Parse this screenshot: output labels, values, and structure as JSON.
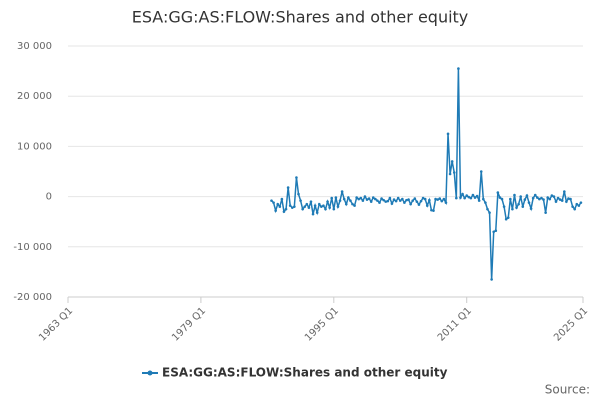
{
  "chart_data": {
    "type": "line",
    "title": "ESA:GG:AS:FLOW:Shares and other equity",
    "x": [
      "1987 Q3",
      "1987 Q4",
      "1988 Q1",
      "1988 Q2",
      "1988 Q3",
      "1988 Q4",
      "1989 Q1",
      "1989 Q2",
      "1989 Q3",
      "1989 Q4",
      "1990 Q1",
      "1990 Q2",
      "1990 Q3",
      "1990 Q4",
      "1991 Q1",
      "1991 Q2",
      "1991 Q3",
      "1991 Q4",
      "1992 Q1",
      "1992 Q2",
      "1992 Q3",
      "1992 Q4",
      "1993 Q1",
      "1993 Q2",
      "1993 Q3",
      "1993 Q4",
      "1994 Q1",
      "1994 Q2",
      "1994 Q3",
      "1994 Q4",
      "1995 Q1",
      "1995 Q2",
      "1995 Q3",
      "1995 Q4",
      "1996 Q1",
      "1996 Q2",
      "1996 Q3",
      "1996 Q4",
      "1997 Q1",
      "1997 Q2",
      "1997 Q3",
      "1997 Q4",
      "1998 Q1",
      "1998 Q2",
      "1998 Q3",
      "1998 Q4",
      "1999 Q1",
      "1999 Q2",
      "1999 Q3",
      "1999 Q4",
      "2000 Q1",
      "2000 Q2",
      "2000 Q3",
      "2000 Q4",
      "2001 Q1",
      "2001 Q2",
      "2001 Q3",
      "2001 Q4",
      "2002 Q1",
      "2002 Q2",
      "2002 Q3",
      "2002 Q4",
      "2003 Q1",
      "2003 Q2",
      "2003 Q3",
      "2003 Q4",
      "2004 Q1",
      "2004 Q2",
      "2004 Q3",
      "2004 Q4",
      "2005 Q1",
      "2005 Q2",
      "2005 Q3",
      "2005 Q4",
      "2006 Q1",
      "2006 Q2",
      "2006 Q3",
      "2006 Q4",
      "2007 Q1",
      "2007 Q2",
      "2007 Q3",
      "2007 Q4",
      "2008 Q1",
      "2008 Q2",
      "2008 Q3",
      "2008 Q4",
      "2009 Q1",
      "2009 Q2",
      "2009 Q3",
      "2009 Q4",
      "2010 Q1",
      "2010 Q2",
      "2010 Q3",
      "2010 Q4",
      "2011 Q1",
      "2011 Q2",
      "2011 Q3",
      "2011 Q4",
      "2012 Q1",
      "2012 Q2",
      "2012 Q3",
      "2012 Q4",
      "2013 Q1",
      "2013 Q2",
      "2013 Q3",
      "2013 Q4",
      "2014 Q1",
      "2014 Q2",
      "2014 Q3",
      "2014 Q4",
      "2015 Q1",
      "2015 Q2",
      "2015 Q3",
      "2015 Q4",
      "2016 Q1",
      "2016 Q2",
      "2016 Q3",
      "2016 Q4",
      "2017 Q1",
      "2017 Q2",
      "2017 Q3",
      "2017 Q4",
      "2018 Q1",
      "2018 Q2",
      "2018 Q3",
      "2018 Q4",
      "2019 Q1",
      "2019 Q2",
      "2019 Q3",
      "2019 Q4",
      "2020 Q1",
      "2020 Q2",
      "2020 Q3",
      "2020 Q4",
      "2021 Q1",
      "2021 Q2",
      "2021 Q3",
      "2021 Q4",
      "2022 Q1",
      "2022 Q2",
      "2022 Q3",
      "2022 Q4",
      "2023 Q1",
      "2023 Q2",
      "2023 Q3",
      "2023 Q4",
      "2024 Q1",
      "2024 Q2",
      "2024 Q3",
      "2024 Q4"
    ],
    "series": [
      {
        "name": "ESA:GG:AS:FLOW:Shares and other equity",
        "color": "#1f7bb6",
        "values": [
          -800,
          -1200,
          -2800,
          -1500,
          -2000,
          -500,
          -3000,
          -2500,
          1800,
          -1800,
          -2200,
          -2000,
          3800,
          500,
          -800,
          -2500,
          -2000,
          -1500,
          -2200,
          -1000,
          -3500,
          -1800,
          -3200,
          -1500,
          -2000,
          -1800,
          -2500,
          -1000,
          -2200,
          -300,
          -2500,
          -200,
          -2000,
          -800,
          1000,
          -500,
          -1500,
          -200,
          -800,
          -1500,
          -1800,
          -200,
          -500,
          -300,
          -800,
          0,
          -600,
          -400,
          -1000,
          -200,
          -500,
          -800,
          -1200,
          -400,
          -700,
          -1000,
          -900,
          -300,
          -1400,
          -600,
          -900,
          -300,
          -800,
          -500,
          -1200,
          -700,
          -600,
          -1500,
          -800,
          -400,
          -1000,
          -1600,
          -900,
          -300,
          -500,
          -1800,
          -700,
          -2700,
          -2800,
          -500,
          -600,
          -400,
          -900,
          -500,
          -1200,
          12500,
          4500,
          7000,
          4800,
          -300,
          25500,
          -200,
          500,
          -300,
          200,
          -100,
          -300,
          300,
          -200,
          100,
          -800,
          5000,
          -500,
          -1200,
          -2500,
          -3200,
          -16500,
          -7000,
          -6800,
          800,
          -200,
          -500,
          -2000,
          -4500,
          -4200,
          -500,
          -2500,
          300,
          -2200,
          -1500,
          0,
          -2000,
          -600,
          200,
          -1200,
          -2400,
          -300,
          300,
          -200,
          -500,
          -300,
          -600,
          -3200,
          -200,
          -500,
          200,
          0,
          -1000,
          -300,
          -600,
          -800,
          1000,
          -1000,
          -400,
          -500,
          -2000,
          -2500,
          -1500,
          -1800,
          -1200
        ]
      }
    ],
    "xlim": [
      "1963 Q1",
      "2025 Q1"
    ],
    "xticks": [
      "1963 Q1",
      "1979 Q1",
      "1995 Q1",
      "2011 Q1",
      "2025 Q1"
    ],
    "ylim": [
      -20000,
      30000
    ],
    "yticks": [
      {
        "value": -20000,
        "label": "-20 000"
      },
      {
        "value": -10000,
        "label": "-10 000"
      },
      0,
      {
        "value": 10000,
        "label": "10 000"
      },
      {
        "value": 20000,
        "label": "20 000"
      },
      {
        "value": 30000,
        "label": "30 000"
      }
    ],
    "grid": true,
    "legend": "bottom",
    "source": "Source:"
  }
}
